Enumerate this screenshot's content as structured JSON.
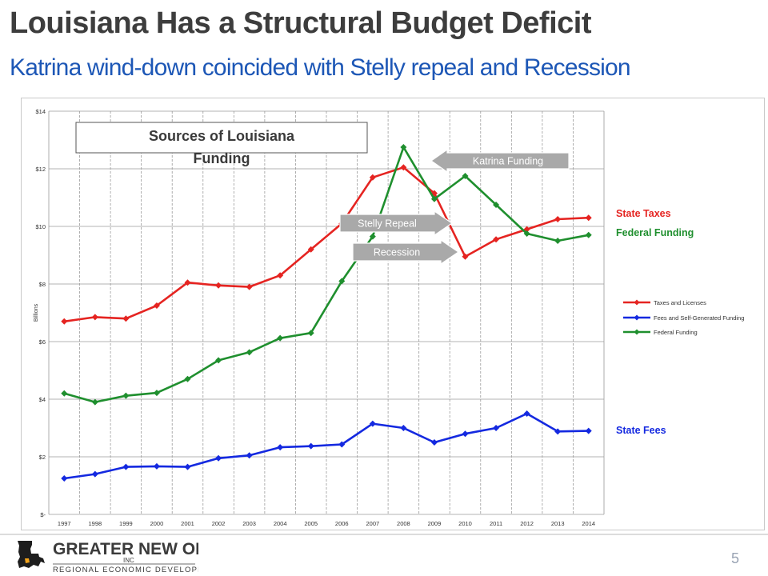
{
  "slide": {
    "title": "Louisiana Has a Structural Budget Deficit",
    "subtitle": "Katrina wind-down coincided with Stelly repeal and Recession",
    "page_number": "5"
  },
  "logo": {
    "name": "GREATER NEW ORLEANS",
    "inc": "INC",
    "tagline": "REGIONAL ECONOMIC DEVELOPMENT"
  },
  "colors": {
    "title": "#3d3d3d",
    "subtitle": "#1d57b6",
    "state_taxes": "#e52421",
    "federal": "#1f8f2e",
    "fees": "#1429e0",
    "grid": "#9a9a9a"
  },
  "chart_data": {
    "type": "line",
    "title": "Sources of Louisiana Funding",
    "ylabel": "Billions",
    "xlabel": "",
    "ylim": [
      0,
      14
    ],
    "y_ticks": [
      0,
      2,
      4,
      6,
      8,
      10,
      12,
      14
    ],
    "y_tick_labels": [
      "$-",
      "$2",
      "$4",
      "$6",
      "$8",
      "$10",
      "$12",
      "$14"
    ],
    "categories": [
      "1997",
      "1998",
      "1999",
      "2000",
      "2001",
      "2002",
      "2003",
      "2004",
      "2005",
      "2006",
      "2007",
      "2008",
      "2009",
      "2010",
      "2011",
      "2012",
      "2013",
      "2014"
    ],
    "grid": {
      "x": "dashed",
      "y": "solid"
    },
    "legend_position": "right",
    "series": [
      {
        "name": "Taxes and Licenses",
        "color": "#e52421",
        "values": [
          6.7,
          6.85,
          6.8,
          7.25,
          8.05,
          7.95,
          7.9,
          8.3,
          9.2,
          10.1,
          11.7,
          12.05,
          11.15,
          8.95,
          9.55,
          9.9,
          10.25,
          10.3
        ]
      },
      {
        "name": "Fees and Self-Generated Funding",
        "color": "#1429e0",
        "values": [
          1.25,
          1.4,
          1.65,
          1.67,
          1.65,
          1.95,
          2.05,
          2.33,
          2.37,
          2.43,
          3.15,
          3.0,
          2.5,
          2.8,
          3.0,
          3.5,
          2.88,
          2.9
        ]
      },
      {
        "name": "Federal Funding",
        "color": "#1f8f2e",
        "values": [
          4.2,
          3.9,
          4.12,
          4.22,
          4.7,
          5.35,
          5.63,
          6.12,
          6.3,
          8.1,
          9.65,
          12.75,
          10.95,
          11.75,
          10.75,
          9.75,
          9.5,
          9.7
        ]
      }
    ],
    "annotations": [
      {
        "text": "Katrina Funding"
      },
      {
        "text": "Stelly Repeal"
      },
      {
        "text": "Recession"
      }
    ],
    "side_labels": [
      {
        "text": "State Taxes",
        "color": "#e52421",
        "anchor_value": 10.3
      },
      {
        "text": "Federal Funding",
        "color": "#1f8f2e",
        "anchor_value": 9.7
      },
      {
        "text": "State Fees",
        "color": "#1429e0",
        "anchor_value": 2.9
      }
    ]
  }
}
